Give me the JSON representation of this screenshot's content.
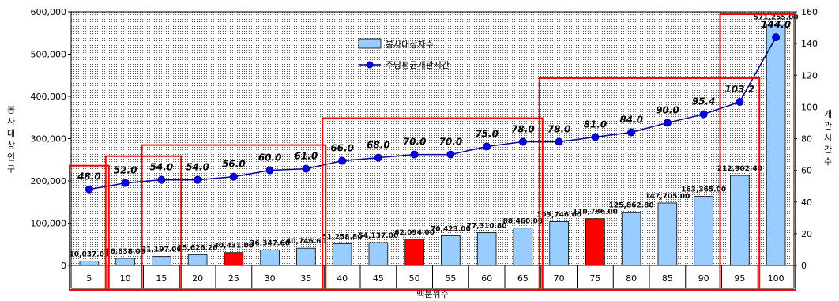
{
  "chart_data": {
    "type": "bar",
    "categories": [
      "5",
      "10",
      "15",
      "20",
      "25",
      "30",
      "35",
      "40",
      "45",
      "50",
      "55",
      "60",
      "65",
      "70",
      "75",
      "80",
      "85",
      "90",
      "95",
      "100"
    ],
    "series": [
      {
        "name": "봉사대상자수",
        "kind": "bar",
        "axis": "left",
        "values": [
          10037,
          16838,
          21197,
          25626.2,
          30431,
          36347.6,
          40746.6,
          51258.8,
          54137,
          62094,
          70423,
          77310.8,
          88460,
          103746,
          110786,
          125862.8,
          147705,
          163365,
          212902.4,
          571255
        ],
        "labels": [
          "10,037.00",
          "16,838.00",
          "21,197.00",
          "25,626.20",
          "30,431.00",
          "36,347.60",
          "40,746.60",
          "51,258.80",
          "54,137.00",
          "62,094.00",
          "70,423.00",
          "77,310.80",
          "88,460.00",
          "103,746.00",
          "110,786.00",
          "125,862.80",
          "147,705.00",
          "163,365.00",
          "212,902.40",
          "571,255.00"
        ],
        "color": "#99ccff",
        "highlight_color": "#ff0000",
        "highlight_categories": [
          "25",
          "50",
          "75"
        ]
      },
      {
        "name": "주당평균개관시간",
        "kind": "line",
        "axis": "right",
        "values": [
          48,
          52,
          54,
          54,
          56,
          60,
          61,
          66,
          68,
          70,
          70,
          75,
          78,
          78,
          81,
          84,
          90,
          95.4,
          103.2,
          144
        ],
        "labels": [
          "48.0",
          "52.0",
          "54.0",
          "54.0",
          "56.0",
          "60.0",
          "61.0",
          "66.0",
          "68.0",
          "70.0",
          "70.0",
          "75.0",
          "78.0",
          "78.0",
          "81.0",
          "84.0",
          "90.0",
          "95.4",
          "103.2",
          "144.0"
        ],
        "color": "#000099"
      }
    ],
    "xlabel": "백분위수",
    "ylabel": "봉사대상인구",
    "y2label": "개관시간수",
    "ylim": [
      0,
      600000
    ],
    "y2lim": [
      0,
      160
    ],
    "yticks": [
      "0",
      "100,000",
      "200,000",
      "300,000",
      "400,000",
      "500,000",
      "600,000"
    ],
    "y2ticks": [
      "0",
      "20",
      "40",
      "60",
      "80",
      "100",
      "120",
      "140",
      "160"
    ],
    "legend": [
      "봉사대상자수",
      "주당평균개관시간"
    ],
    "legend_position": "top-center",
    "grid": false,
    "background": "dotted",
    "highlight_boxes": [
      [
        "5",
        "5"
      ],
      [
        "10",
        "15"
      ],
      [
        "15",
        "35"
      ],
      [
        "40",
        "65"
      ],
      [
        "70",
        "95"
      ],
      [
        "95",
        "100"
      ]
    ]
  }
}
